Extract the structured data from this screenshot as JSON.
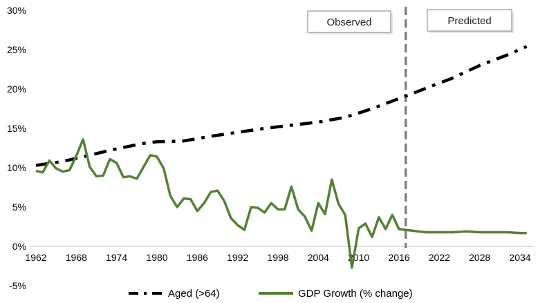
{
  "chart_data": {
    "type": "line",
    "title": "",
    "xlabel": "",
    "ylabel": "",
    "xlim": [
      1961,
      2036
    ],
    "ylim": [
      -5,
      30
    ],
    "x_ticks": [
      1962,
      1968,
      1974,
      1980,
      1986,
      1992,
      1998,
      2004,
      2010,
      2016,
      2022,
      2028,
      2034
    ],
    "y_ticks": [
      -5,
      0,
      5,
      10,
      15,
      20,
      25,
      30
    ],
    "y_tick_format": "percent",
    "grid": false,
    "legend_position": "bottom",
    "divider_year": 2017,
    "region_labels": {
      "observed": "Observed",
      "predicted": "Predicted"
    },
    "series": [
      {
        "name": "Aged (>64)",
        "color": "#000000",
        "style": "dash-dot",
        "x": [
          1962,
          1966,
          1970,
          1974,
          1978,
          1980,
          1984,
          1988,
          1992,
          1996,
          2000,
          2004,
          2008,
          2012,
          2016,
          2017,
          2020,
          2024,
          2028,
          2032,
          2035
        ],
        "y": [
          10.3,
          10.8,
          11.6,
          12.4,
          13.1,
          13.3,
          13.4,
          14.0,
          14.5,
          15.0,
          15.4,
          15.8,
          16.4,
          17.5,
          18.8,
          19.1,
          20.1,
          21.4,
          23.0,
          24.3,
          25.4
        ]
      },
      {
        "name": "GDP Growth (% change)",
        "color": "#538135",
        "style": "solid",
        "x": [
          1962,
          1963,
          1964,
          1965,
          1966,
          1967,
          1968,
          1969,
          1970,
          1971,
          1972,
          1973,
          1974,
          1975,
          1976,
          1977,
          1978,
          1979,
          1980,
          1981,
          1982,
          1983,
          1984,
          1985,
          1986,
          1987,
          1988,
          1989,
          1990,
          1991,
          1992,
          1993,
          1994,
          1995,
          1996,
          1997,
          1998,
          1999,
          2000,
          2001,
          2002,
          2003,
          2004,
          2005,
          2006,
          2007,
          2008,
          2009,
          2010,
          2011,
          2012,
          2013,
          2014,
          2015,
          2016,
          2017,
          2018,
          2020,
          2022,
          2024,
          2026,
          2028,
          2030,
          2032,
          2034,
          2035
        ],
        "y": [
          9.6,
          9.4,
          10.9,
          9.9,
          9.5,
          9.7,
          11.5,
          13.6,
          10.1,
          8.9,
          9.0,
          11.1,
          10.6,
          8.8,
          8.9,
          8.6,
          10.1,
          11.6,
          11.4,
          9.9,
          6.4,
          5.0,
          6.1,
          6.0,
          4.5,
          5.5,
          6.9,
          7.1,
          5.8,
          3.6,
          2.7,
          2.1,
          5.0,
          4.9,
          4.3,
          5.5,
          4.7,
          4.7,
          7.6,
          4.7,
          3.8,
          2.0,
          5.5,
          4.1,
          8.5,
          5.4,
          4.0,
          -2.7,
          2.3,
          2.9,
          1.2,
          3.7,
          2.2,
          4.0,
          2.2,
          2.1,
          2.0,
          1.8,
          1.8,
          1.8,
          1.9,
          1.8,
          1.8,
          1.8,
          1.7,
          1.7
        ]
      }
    ]
  }
}
